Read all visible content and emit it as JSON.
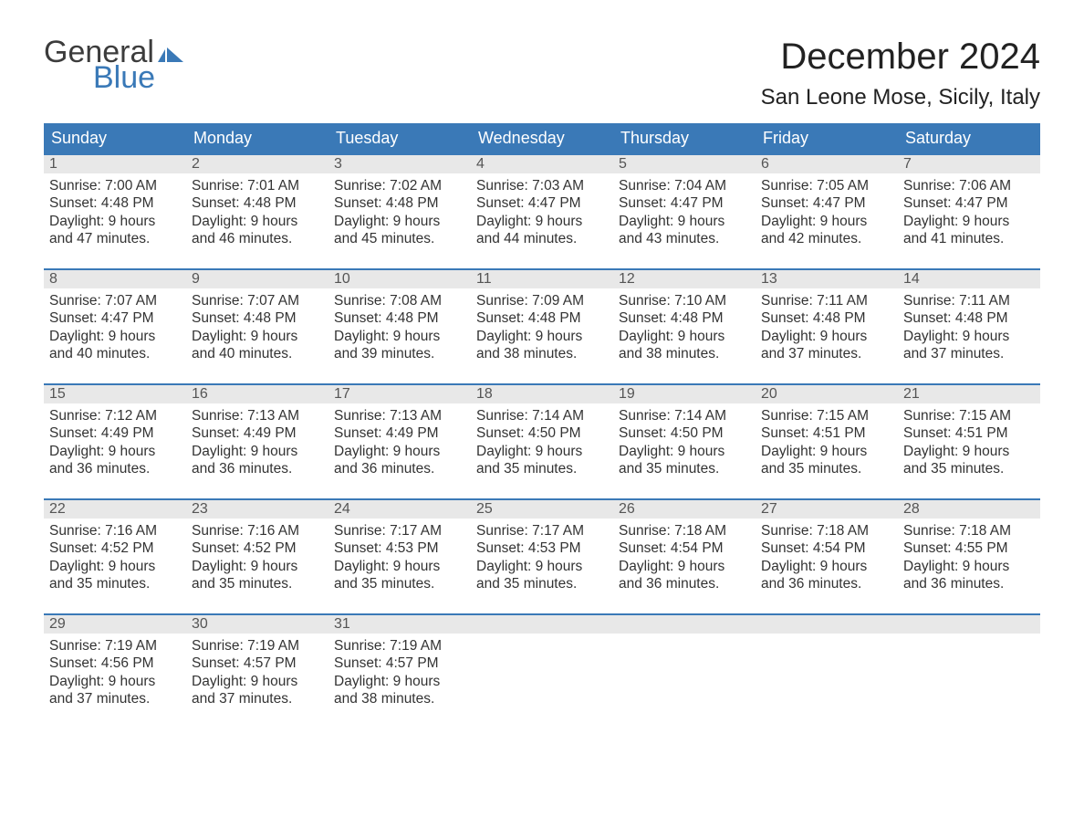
{
  "brand": {
    "word1": "General",
    "word2": "Blue",
    "word1_color": "#3c3c3c",
    "word2_color": "#3a79b7",
    "flag_color": "#3a79b7"
  },
  "header": {
    "title": "December 2024",
    "location": "San Leone Mose, Sicily, Italy"
  },
  "colors": {
    "header_bg": "#3a79b7",
    "header_text": "#ffffff",
    "daynum_bg": "#e8e8e8",
    "daynum_text": "#555555",
    "rule": "#3a79b7",
    "body_text": "#333333",
    "page_bg": "#ffffff"
  },
  "calendar": {
    "day_names": [
      "Sunday",
      "Monday",
      "Tuesday",
      "Wednesday",
      "Thursday",
      "Friday",
      "Saturday"
    ],
    "weeks": [
      [
        {
          "n": "1",
          "sunrise": "Sunrise: 7:00 AM",
          "sunset": "Sunset: 4:48 PM",
          "d1": "Daylight: 9 hours",
          "d2": "and 47 minutes."
        },
        {
          "n": "2",
          "sunrise": "Sunrise: 7:01 AM",
          "sunset": "Sunset: 4:48 PM",
          "d1": "Daylight: 9 hours",
          "d2": "and 46 minutes."
        },
        {
          "n": "3",
          "sunrise": "Sunrise: 7:02 AM",
          "sunset": "Sunset: 4:48 PM",
          "d1": "Daylight: 9 hours",
          "d2": "and 45 minutes."
        },
        {
          "n": "4",
          "sunrise": "Sunrise: 7:03 AM",
          "sunset": "Sunset: 4:47 PM",
          "d1": "Daylight: 9 hours",
          "d2": "and 44 minutes."
        },
        {
          "n": "5",
          "sunrise": "Sunrise: 7:04 AM",
          "sunset": "Sunset: 4:47 PM",
          "d1": "Daylight: 9 hours",
          "d2": "and 43 minutes."
        },
        {
          "n": "6",
          "sunrise": "Sunrise: 7:05 AM",
          "sunset": "Sunset: 4:47 PM",
          "d1": "Daylight: 9 hours",
          "d2": "and 42 minutes."
        },
        {
          "n": "7",
          "sunrise": "Sunrise: 7:06 AM",
          "sunset": "Sunset: 4:47 PM",
          "d1": "Daylight: 9 hours",
          "d2": "and 41 minutes."
        }
      ],
      [
        {
          "n": "8",
          "sunrise": "Sunrise: 7:07 AM",
          "sunset": "Sunset: 4:47 PM",
          "d1": "Daylight: 9 hours",
          "d2": "and 40 minutes."
        },
        {
          "n": "9",
          "sunrise": "Sunrise: 7:07 AM",
          "sunset": "Sunset: 4:48 PM",
          "d1": "Daylight: 9 hours",
          "d2": "and 40 minutes."
        },
        {
          "n": "10",
          "sunrise": "Sunrise: 7:08 AM",
          "sunset": "Sunset: 4:48 PM",
          "d1": "Daylight: 9 hours",
          "d2": "and 39 minutes."
        },
        {
          "n": "11",
          "sunrise": "Sunrise: 7:09 AM",
          "sunset": "Sunset: 4:48 PM",
          "d1": "Daylight: 9 hours",
          "d2": "and 38 minutes."
        },
        {
          "n": "12",
          "sunrise": "Sunrise: 7:10 AM",
          "sunset": "Sunset: 4:48 PM",
          "d1": "Daylight: 9 hours",
          "d2": "and 38 minutes."
        },
        {
          "n": "13",
          "sunrise": "Sunrise: 7:11 AM",
          "sunset": "Sunset: 4:48 PM",
          "d1": "Daylight: 9 hours",
          "d2": "and 37 minutes."
        },
        {
          "n": "14",
          "sunrise": "Sunrise: 7:11 AM",
          "sunset": "Sunset: 4:48 PM",
          "d1": "Daylight: 9 hours",
          "d2": "and 37 minutes."
        }
      ],
      [
        {
          "n": "15",
          "sunrise": "Sunrise: 7:12 AM",
          "sunset": "Sunset: 4:49 PM",
          "d1": "Daylight: 9 hours",
          "d2": "and 36 minutes."
        },
        {
          "n": "16",
          "sunrise": "Sunrise: 7:13 AM",
          "sunset": "Sunset: 4:49 PM",
          "d1": "Daylight: 9 hours",
          "d2": "and 36 minutes."
        },
        {
          "n": "17",
          "sunrise": "Sunrise: 7:13 AM",
          "sunset": "Sunset: 4:49 PM",
          "d1": "Daylight: 9 hours",
          "d2": "and 36 minutes."
        },
        {
          "n": "18",
          "sunrise": "Sunrise: 7:14 AM",
          "sunset": "Sunset: 4:50 PM",
          "d1": "Daylight: 9 hours",
          "d2": "and 35 minutes."
        },
        {
          "n": "19",
          "sunrise": "Sunrise: 7:14 AM",
          "sunset": "Sunset: 4:50 PM",
          "d1": "Daylight: 9 hours",
          "d2": "and 35 minutes."
        },
        {
          "n": "20",
          "sunrise": "Sunrise: 7:15 AM",
          "sunset": "Sunset: 4:51 PM",
          "d1": "Daylight: 9 hours",
          "d2": "and 35 minutes."
        },
        {
          "n": "21",
          "sunrise": "Sunrise: 7:15 AM",
          "sunset": "Sunset: 4:51 PM",
          "d1": "Daylight: 9 hours",
          "d2": "and 35 minutes."
        }
      ],
      [
        {
          "n": "22",
          "sunrise": "Sunrise: 7:16 AM",
          "sunset": "Sunset: 4:52 PM",
          "d1": "Daylight: 9 hours",
          "d2": "and 35 minutes."
        },
        {
          "n": "23",
          "sunrise": "Sunrise: 7:16 AM",
          "sunset": "Sunset: 4:52 PM",
          "d1": "Daylight: 9 hours",
          "d2": "and 35 minutes."
        },
        {
          "n": "24",
          "sunrise": "Sunrise: 7:17 AM",
          "sunset": "Sunset: 4:53 PM",
          "d1": "Daylight: 9 hours",
          "d2": "and 35 minutes."
        },
        {
          "n": "25",
          "sunrise": "Sunrise: 7:17 AM",
          "sunset": "Sunset: 4:53 PM",
          "d1": "Daylight: 9 hours",
          "d2": "and 35 minutes."
        },
        {
          "n": "26",
          "sunrise": "Sunrise: 7:18 AM",
          "sunset": "Sunset: 4:54 PM",
          "d1": "Daylight: 9 hours",
          "d2": "and 36 minutes."
        },
        {
          "n": "27",
          "sunrise": "Sunrise: 7:18 AM",
          "sunset": "Sunset: 4:54 PM",
          "d1": "Daylight: 9 hours",
          "d2": "and 36 minutes."
        },
        {
          "n": "28",
          "sunrise": "Sunrise: 7:18 AM",
          "sunset": "Sunset: 4:55 PM",
          "d1": "Daylight: 9 hours",
          "d2": "and 36 minutes."
        }
      ],
      [
        {
          "n": "29",
          "sunrise": "Sunrise: 7:19 AM",
          "sunset": "Sunset: 4:56 PM",
          "d1": "Daylight: 9 hours",
          "d2": "and 37 minutes."
        },
        {
          "n": "30",
          "sunrise": "Sunrise: 7:19 AM",
          "sunset": "Sunset: 4:57 PM",
          "d1": "Daylight: 9 hours",
          "d2": "and 37 minutes."
        },
        {
          "n": "31",
          "sunrise": "Sunrise: 7:19 AM",
          "sunset": "Sunset: 4:57 PM",
          "d1": "Daylight: 9 hours",
          "d2": "and 38 minutes."
        },
        {
          "n": "",
          "sunrise": "",
          "sunset": "",
          "d1": "",
          "d2": ""
        },
        {
          "n": "",
          "sunrise": "",
          "sunset": "",
          "d1": "",
          "d2": ""
        },
        {
          "n": "",
          "sunrise": "",
          "sunset": "",
          "d1": "",
          "d2": ""
        },
        {
          "n": "",
          "sunrise": "",
          "sunset": "",
          "d1": "",
          "d2": ""
        }
      ]
    ]
  }
}
